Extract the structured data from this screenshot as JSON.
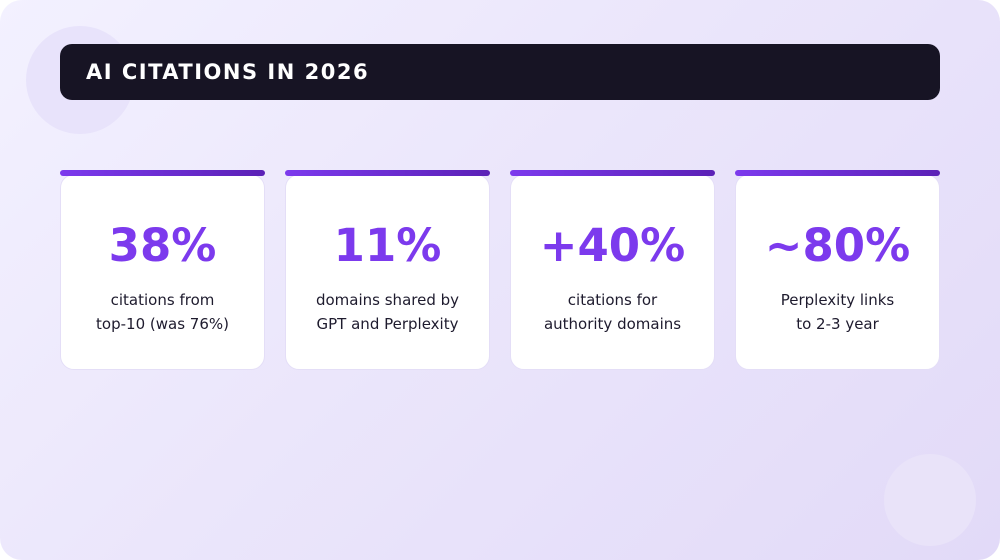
{
  "title": "AI CITATIONS IN 2026",
  "colors": {
    "accent": "#7c3aed",
    "title_bar": "#171424",
    "card_bg": "#ffffff"
  },
  "stats": [
    {
      "value": "38%",
      "caption_line1": "citations from",
      "caption_line2": "top-10 (was 76%)"
    },
    {
      "value": "11%",
      "caption_line1": "domains shared by",
      "caption_line2": "GPT and Perplexity"
    },
    {
      "value": "+40%",
      "caption_line1": "citations for",
      "caption_line2": "authority domains"
    },
    {
      "value": "~80%",
      "caption_line1": "Perplexity links",
      "caption_line2": "to 2-3 year"
    }
  ]
}
